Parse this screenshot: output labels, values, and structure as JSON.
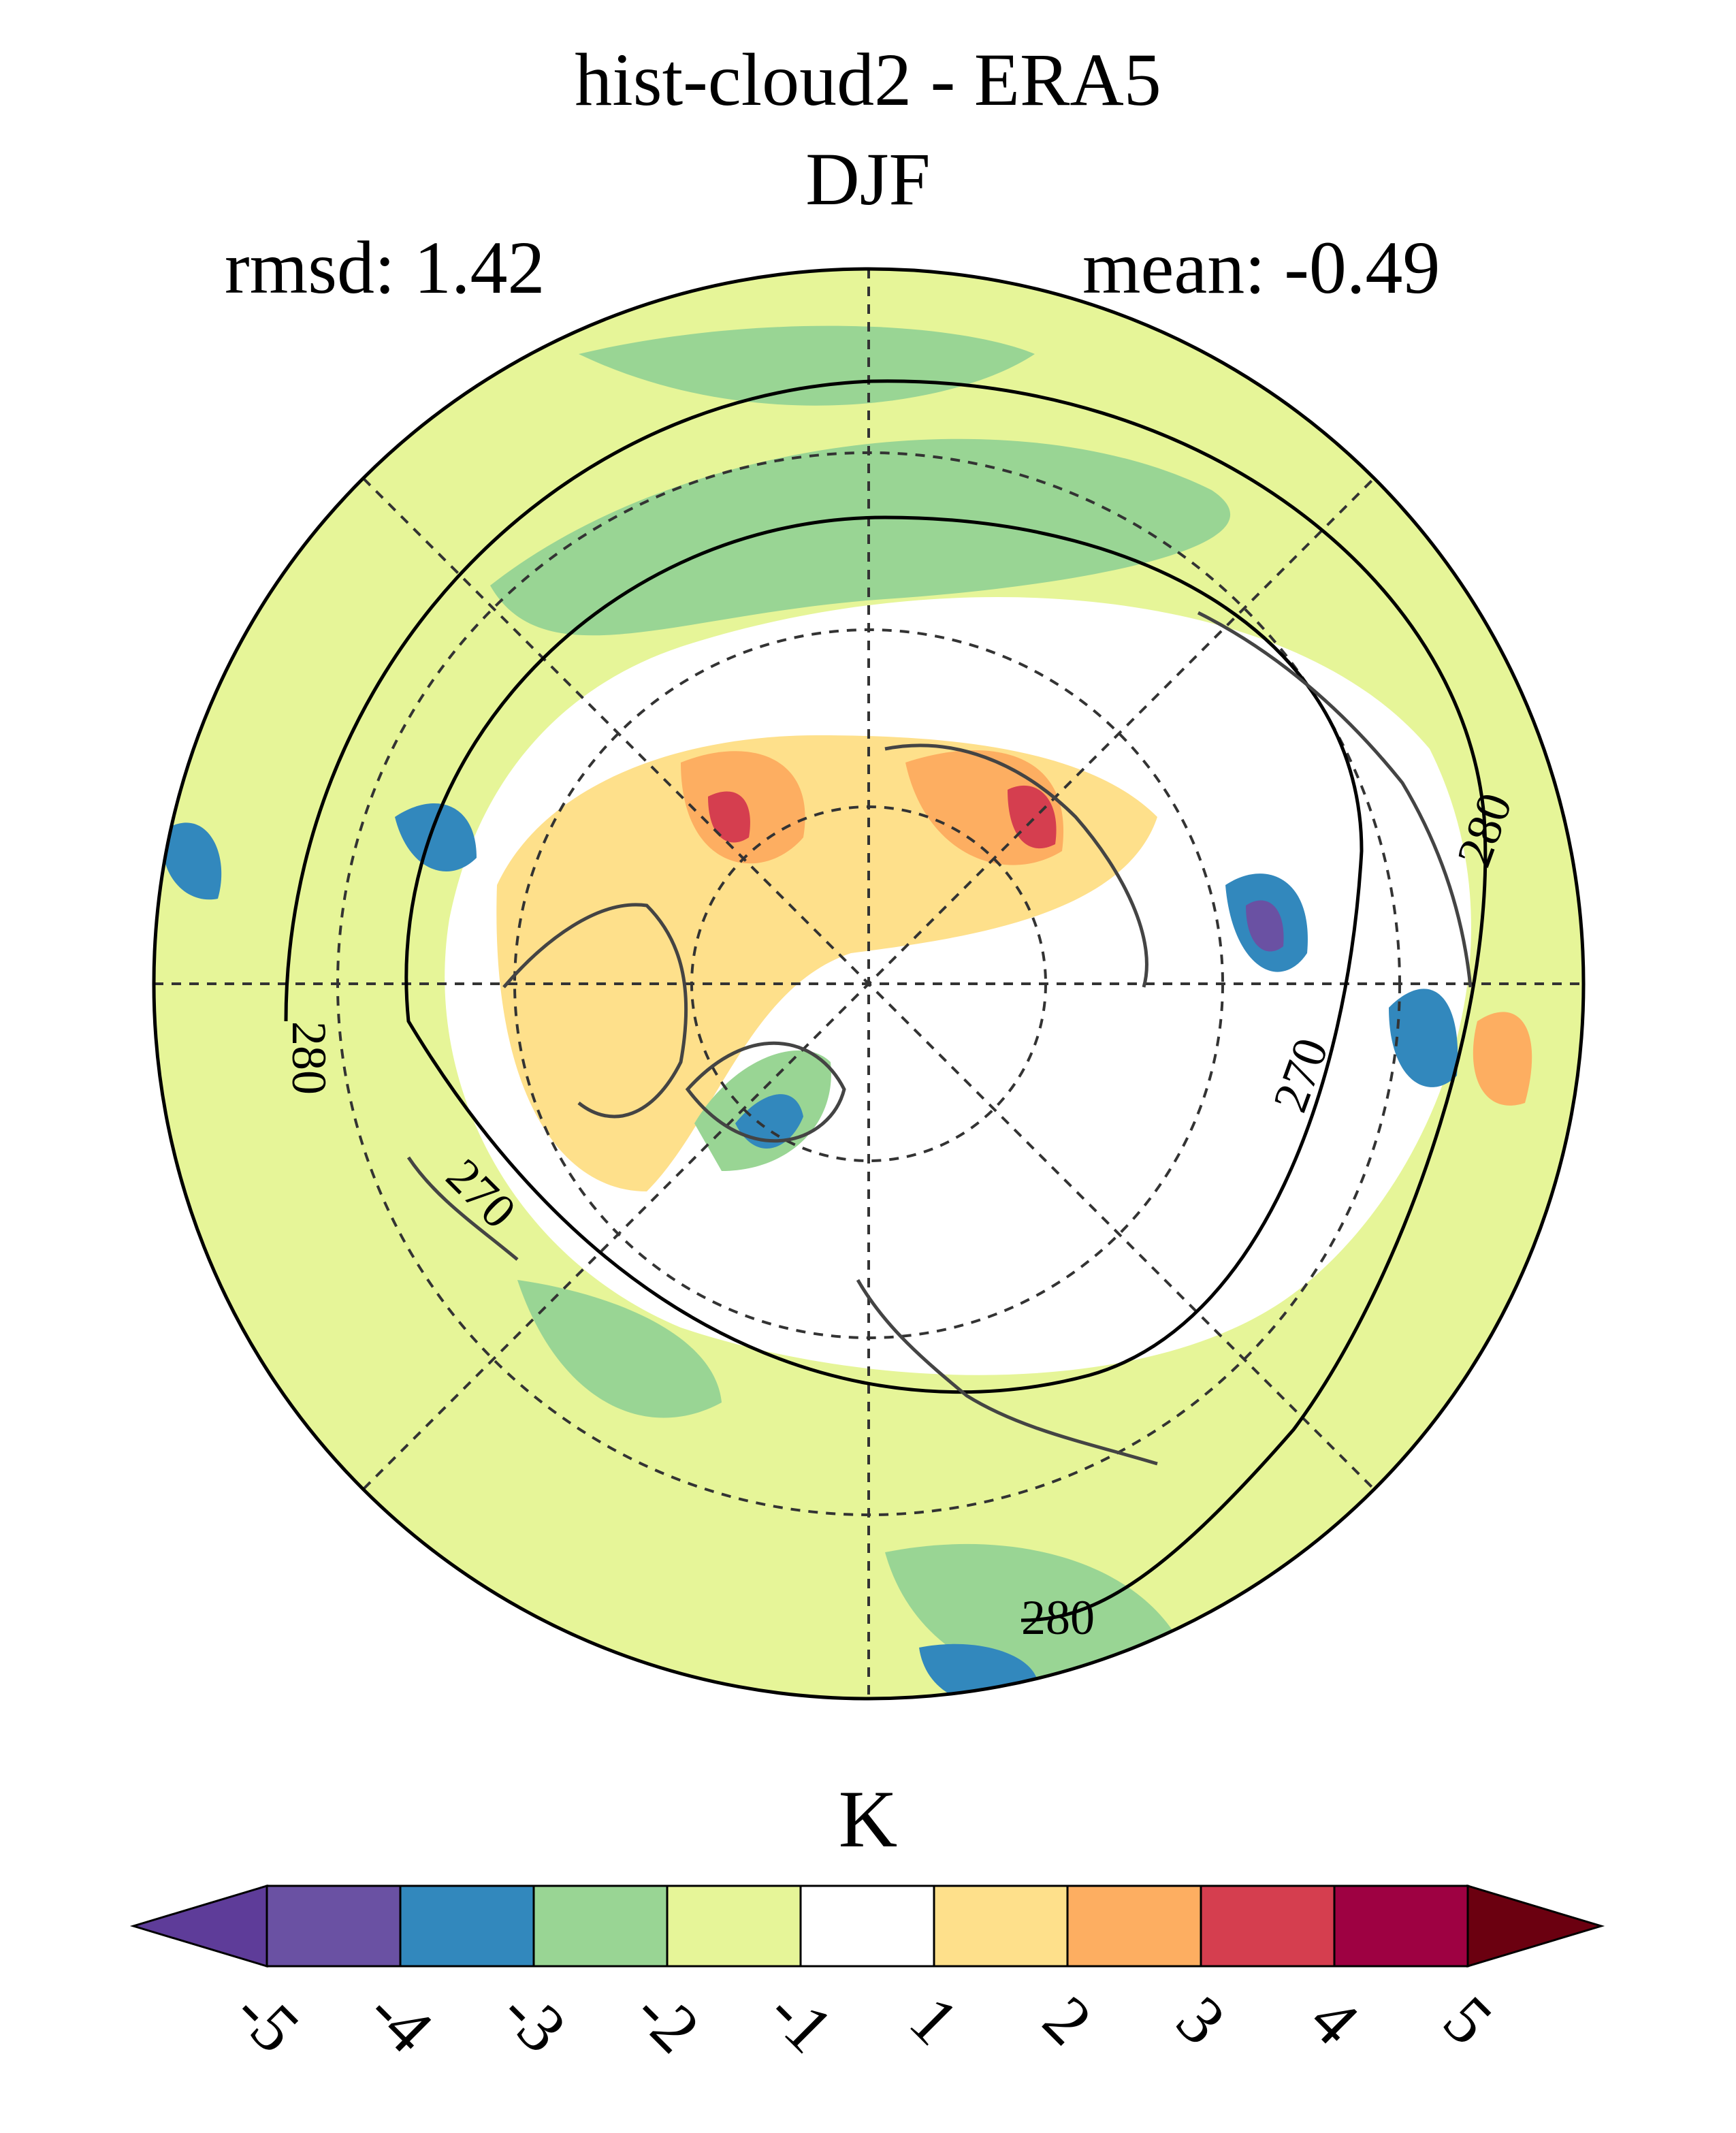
{
  "title": {
    "line1": "hist-cloud2 - ERA5",
    "line2": "DJF"
  },
  "stats": {
    "rmsd": "rmsd: 1.42",
    "mean": "mean: -0.49"
  },
  "map": {
    "projection": "north-polar-stereographic",
    "contour_labels": [
      "280",
      "270",
      "270",
      "280",
      "280"
    ]
  },
  "colorbar": {
    "units": "K",
    "ticks": [
      "-5",
      "-4",
      "-3",
      "-2",
      "-1",
      "1",
      "2",
      "3",
      "4",
      "5"
    ],
    "colors": [
      "#5e3c99",
      "#6a51a3",
      "#3288bd",
      "#99d594",
      "#e6f598",
      "#ffffff",
      "#fee08b",
      "#fdae61",
      "#d53e4f",
      "#9e0142",
      "#6b0010"
    ]
  }
}
